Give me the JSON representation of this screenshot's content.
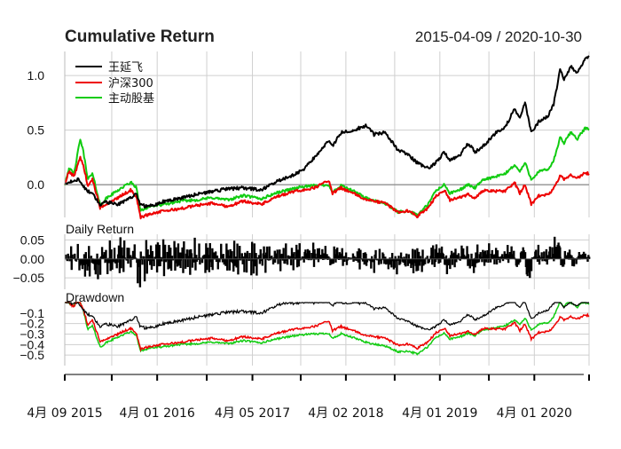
{
  "chart_data": {
    "type": "line",
    "title": "Cumulative Return",
    "date_range": "2015-04-09 / 2020-10-30",
    "x_axis": {
      "start": "2015-04-09",
      "end": "2020-10-30",
      "tick_labels": [
        {
          "date": "2015-04-09",
          "label": "4月 09 2015"
        },
        {
          "date": "2016-04-01",
          "label": "4月 01 2016"
        },
        {
          "date": "2017-04-05",
          "label": "4月 05 2017"
        },
        {
          "date": "2018-04-02",
          "label": "4月 02 2018"
        },
        {
          "date": "2019-04-01",
          "label": "4月 01 2019"
        },
        {
          "date": "2020-04-01",
          "label": "4月 01 2020"
        }
      ],
      "minor_grid_dates": [
        "2015-10-08",
        "2016-10-10",
        "2017-10-09",
        "2018-10-08",
        "2019-10-08"
      ]
    },
    "legend": {
      "position": "top-left",
      "entries": [
        "王延飞",
        "沪深300",
        "主动股基"
      ]
    },
    "colors": {
      "王延飞": "#000000",
      "沪深300": "#ee0000",
      "主动股基": "#11cc11",
      "grid": "#cfcfcf",
      "zero": "#888888"
    },
    "panels": {
      "cumulative": {
        "title": "Cumulative Return",
        "ylim": [
          -0.3,
          1.22
        ],
        "yticks": [
          {
            "v": 0.0,
            "label": "0.0"
          },
          {
            "v": 0.5,
            "label": "0.5"
          },
          {
            "v": 1.0,
            "label": "1.0"
          }
        ],
        "series": [
          {
            "name": "王延飞",
            "points": [
              [
                "2015-04-09",
                0.0
              ],
              [
                "2015-05-05",
                0.03
              ],
              [
                "2015-06-01",
                0.05
              ],
              [
                "2015-06-20",
                -0.02
              ],
              [
                "2015-07-08",
                -0.06
              ],
              [
                "2015-07-25",
                -0.08
              ],
              [
                "2015-08-25",
                -0.19
              ],
              [
                "2015-09-15",
                -0.16
              ],
              [
                "2015-11-01",
                -0.18
              ],
              [
                "2015-12-20",
                -0.12
              ],
              [
                "2016-01-10",
                -0.08
              ],
              [
                "2016-01-28",
                -0.19
              ],
              [
                "2016-03-01",
                -0.2
              ],
              [
                "2016-05-01",
                -0.15
              ],
              [
                "2016-07-01",
                -0.12
              ],
              [
                "2016-09-01",
                -0.09
              ],
              [
                "2016-11-01",
                -0.06
              ],
              [
                "2016-12-31",
                -0.04
              ],
              [
                "2017-03-01",
                -0.03
              ],
              [
                "2017-05-10",
                -0.05
              ],
              [
                "2017-07-01",
                0.02
              ],
              [
                "2017-09-01",
                0.08
              ],
              [
                "2017-10-15",
                0.13
              ],
              [
                "2017-12-01",
                0.25
              ],
              [
                "2018-01-25",
                0.4
              ],
              [
                "2018-02-09",
                0.35
              ],
              [
                "2018-03-15",
                0.48
              ],
              [
                "2018-05-01",
                0.5
              ],
              [
                "2018-06-20",
                0.54
              ],
              [
                "2018-07-20",
                0.46
              ],
              [
                "2018-09-01",
                0.48
              ],
              [
                "2018-10-20",
                0.32
              ],
              [
                "2018-12-01",
                0.27
              ],
              [
                "2019-01-03",
                0.2
              ],
              [
                "2019-02-15",
                0.15
              ],
              [
                "2019-03-15",
                0.2
              ],
              [
                "2019-04-19",
                0.3
              ],
              [
                "2019-05-10",
                0.22
              ],
              [
                "2019-06-15",
                0.26
              ],
              [
                "2019-07-20",
                0.38
              ],
              [
                "2019-08-15",
                0.3
              ],
              [
                "2019-09-20",
                0.36
              ],
              [
                "2019-11-01",
                0.47
              ],
              [
                "2019-12-10",
                0.52
              ],
              [
                "2020-01-15",
                0.7
              ],
              [
                "2020-02-05",
                0.6
              ],
              [
                "2020-02-25",
                0.75
              ],
              [
                "2020-03-20",
                0.48
              ],
              [
                "2020-04-20",
                0.58
              ],
              [
                "2020-05-25",
                0.63
              ],
              [
                "2020-06-15",
                0.74
              ],
              [
                "2020-07-10",
                1.05
              ],
              [
                "2020-07-25",
                0.96
              ],
              [
                "2020-08-20",
                1.08
              ],
              [
                "2020-09-15",
                1.02
              ],
              [
                "2020-10-15",
                1.16
              ],
              [
                "2020-10-30",
                1.18
              ]
            ]
          },
          {
            "name": "沪深300",
            "points": [
              [
                "2015-04-09",
                0.0
              ],
              [
                "2015-04-25",
                0.12
              ],
              [
                "2015-05-15",
                0.08
              ],
              [
                "2015-06-08",
                0.25
              ],
              [
                "2015-06-20",
                0.18
              ],
              [
                "2015-07-08",
                -0.02
              ],
              [
                "2015-07-25",
                0.05
              ],
              [
                "2015-08-25",
                -0.22
              ],
              [
                "2015-09-15",
                -0.18
              ],
              [
                "2015-11-01",
                -0.12
              ],
              [
                "2015-12-20",
                -0.05
              ],
              [
                "2016-01-10",
                -0.1
              ],
              [
                "2016-01-28",
                -0.3
              ],
              [
                "2016-03-01",
                -0.27
              ],
              [
                "2016-05-01",
                -0.24
              ],
              [
                "2016-07-01",
                -0.22
              ],
              [
                "2016-09-01",
                -0.19
              ],
              [
                "2016-11-01",
                -0.17
              ],
              [
                "2016-12-31",
                -0.2
              ],
              [
                "2017-03-01",
                -0.15
              ],
              [
                "2017-05-10",
                -0.18
              ],
              [
                "2017-07-01",
                -0.12
              ],
              [
                "2017-09-01",
                -0.07
              ],
              [
                "2017-10-15",
                -0.05
              ],
              [
                "2017-12-01",
                -0.03
              ],
              [
                "2018-01-25",
                0.04
              ],
              [
                "2018-02-09",
                -0.08
              ],
              [
                "2018-03-15",
                -0.03
              ],
              [
                "2018-05-01",
                -0.08
              ],
              [
                "2018-06-20",
                -0.14
              ],
              [
                "2018-07-20",
                -0.15
              ],
              [
                "2018-09-01",
                -0.17
              ],
              [
                "2018-10-20",
                -0.25
              ],
              [
                "2018-12-01",
                -0.24
              ],
              [
                "2019-01-03",
                -0.29
              ],
              [
                "2019-02-15",
                -0.21
              ],
              [
                "2019-03-15",
                -0.11
              ],
              [
                "2019-04-19",
                -0.05
              ],
              [
                "2019-05-10",
                -0.14
              ],
              [
                "2019-06-15",
                -0.12
              ],
              [
                "2019-07-20",
                -0.09
              ],
              [
                "2019-08-15",
                -0.12
              ],
              [
                "2019-09-20",
                -0.05
              ],
              [
                "2019-11-01",
                -0.06
              ],
              [
                "2019-12-10",
                -0.06
              ],
              [
                "2020-01-15",
                0.02
              ],
              [
                "2020-02-05",
                -0.08
              ],
              [
                "2020-02-25",
                0.0
              ],
              [
                "2020-03-20",
                -0.18
              ],
              [
                "2020-04-20",
                -0.1
              ],
              [
                "2020-05-25",
                -0.09
              ],
              [
                "2020-06-15",
                -0.04
              ],
              [
                "2020-07-10",
                0.08
              ],
              [
                "2020-07-25",
                0.05
              ],
              [
                "2020-08-20",
                0.09
              ],
              [
                "2020-09-15",
                0.06
              ],
              [
                "2020-10-15",
                0.11
              ],
              [
                "2020-10-30",
                0.1
              ]
            ]
          },
          {
            "name": "主动股基",
            "points": [
              [
                "2015-04-09",
                0.0
              ],
              [
                "2015-04-25",
                0.15
              ],
              [
                "2015-05-15",
                0.1
              ],
              [
                "2015-06-08",
                0.42
              ],
              [
                "2015-06-20",
                0.3
              ],
              [
                "2015-07-08",
                0.05
              ],
              [
                "2015-07-25",
                0.1
              ],
              [
                "2015-08-25",
                -0.19
              ],
              [
                "2015-09-15",
                -0.13
              ],
              [
                "2015-11-01",
                -0.05
              ],
              [
                "2015-12-20",
                0.02
              ],
              [
                "2016-01-10",
                -0.02
              ],
              [
                "2016-01-28",
                -0.24
              ],
              [
                "2016-03-01",
                -0.2
              ],
              [
                "2016-05-01",
                -0.18
              ],
              [
                "2016-07-01",
                -0.15
              ],
              [
                "2016-09-01",
                -0.14
              ],
              [
                "2016-11-01",
                -0.12
              ],
              [
                "2016-12-31",
                -0.14
              ],
              [
                "2017-03-01",
                -0.1
              ],
              [
                "2017-05-10",
                -0.13
              ],
              [
                "2017-07-01",
                -0.08
              ],
              [
                "2017-09-01",
                -0.04
              ],
              [
                "2017-10-15",
                -0.02
              ],
              [
                "2017-12-01",
                -0.01
              ],
              [
                "2018-01-25",
                0.0
              ],
              [
                "2018-02-09",
                -0.07
              ],
              [
                "2018-03-15",
                -0.01
              ],
              [
                "2018-05-01",
                -0.06
              ],
              [
                "2018-06-20",
                -0.12
              ],
              [
                "2018-07-20",
                -0.15
              ],
              [
                "2018-09-01",
                -0.17
              ],
              [
                "2018-10-20",
                -0.25
              ],
              [
                "2018-12-01",
                -0.24
              ],
              [
                "2019-01-03",
                -0.28
              ],
              [
                "2019-02-15",
                -0.18
              ],
              [
                "2019-03-15",
                -0.06
              ],
              [
                "2019-04-19",
                0.0
              ],
              [
                "2019-05-10",
                -0.08
              ],
              [
                "2019-06-15",
                -0.05
              ],
              [
                "2019-07-20",
                0.0
              ],
              [
                "2019-08-15",
                -0.03
              ],
              [
                "2019-09-20",
                0.05
              ],
              [
                "2019-11-01",
                0.07
              ],
              [
                "2019-12-10",
                0.1
              ],
              [
                "2020-01-15",
                0.18
              ],
              [
                "2020-02-05",
                0.12
              ],
              [
                "2020-02-25",
                0.2
              ],
              [
                "2020-03-20",
                0.05
              ],
              [
                "2020-04-20",
                0.12
              ],
              [
                "2020-05-25",
                0.14
              ],
              [
                "2020-06-15",
                0.22
              ],
              [
                "2020-07-10",
                0.43
              ],
              [
                "2020-07-25",
                0.38
              ],
              [
                "2020-08-20",
                0.48
              ],
              [
                "2020-09-15",
                0.42
              ],
              [
                "2020-10-15",
                0.52
              ],
              [
                "2020-10-30",
                0.5
              ]
            ]
          }
        ]
      },
      "daily": {
        "title": "Daily Return",
        "ylim": [
          -0.08,
          0.065
        ],
        "yticks": [
          {
            "v": 0.05,
            "label": "0.05"
          },
          {
            "v": 0.0,
            "label": "0.00"
          },
          {
            "v": -0.05,
            "label": "−0.05"
          }
        ],
        "series_name": "王延飞"
      },
      "drawdown": {
        "title": "Drawdown",
        "ylim": [
          -0.6,
          0.0
        ],
        "yticks": [
          {
            "v": -0.1,
            "label": "−0.1"
          },
          {
            "v": -0.2,
            "label": "−0.2"
          },
          {
            "v": -0.3,
            "label": "−0.3"
          },
          {
            "v": -0.4,
            "label": "−0.4"
          },
          {
            "v": -0.5,
            "label": "−0.5"
          }
        ]
      }
    }
  }
}
